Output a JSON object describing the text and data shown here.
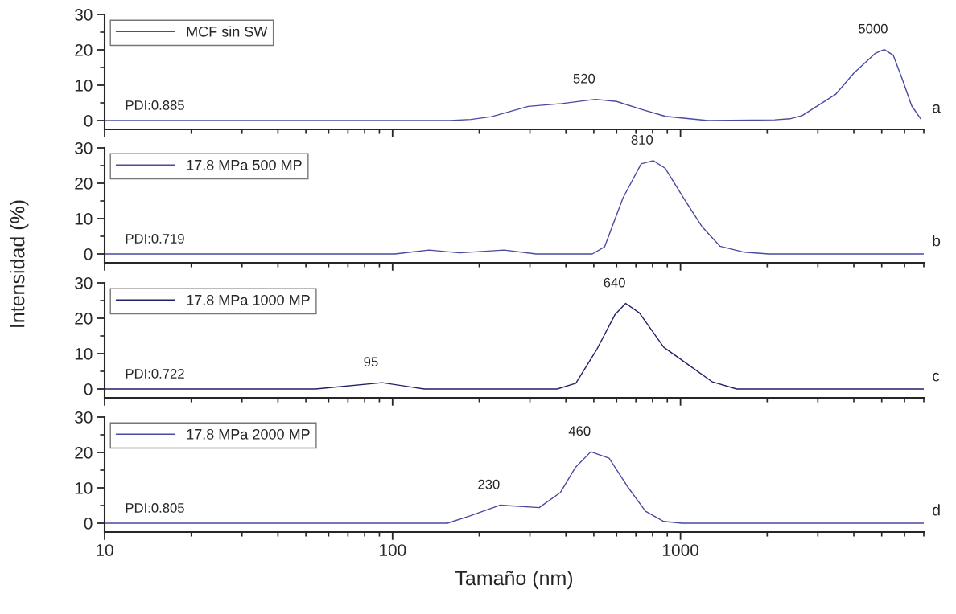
{
  "chart_data": [
    {
      "type": "line",
      "ylabel": "Intensidad (%)",
      "xlim": [
        10,
        7000
      ],
      "xticks": [
        10,
        100,
        1000
      ],
      "ylim": [
        -2.5,
        30
      ],
      "yticks": [
        0,
        10,
        20,
        30
      ],
      "log": "x",
      "tick_labels": "y",
      "legend": "top left",
      "grid": false,
      "series": [
        {
          "name": "MCF sin SW",
          "color": "#4a4aa0",
          "x": [
            10,
            158,
            187,
            221,
            296,
            387,
            506,
            600,
            729,
            886,
            1245,
            2125,
            2400,
            2643,
            3456,
            4000,
            4745,
            5100,
            5480,
            5900,
            6350,
            6830
          ],
          "values": [
            0,
            0,
            0.3,
            1.1,
            4.0,
            4.8,
            6.0,
            5.4,
            3.2,
            1.2,
            0,
            0.2,
            0.5,
            1.4,
            7.4,
            13.4,
            19.0,
            20.1,
            18.5,
            11.6,
            4.2,
            0.5
          ]
        }
      ],
      "annotations": [
        "PDI:0.885",
        "a",
        {
          "text": "520",
          "x": 506,
          "y": 6.0
        },
        {
          "text": "5000",
          "x": 5100,
          "y": 20.1
        }
      ]
    },
    {
      "type": "line",
      "xlim": [
        10,
        7000
      ],
      "xticks": [
        10,
        100,
        1000
      ],
      "ylim": [
        -2.5,
        30
      ],
      "yticks": [
        0,
        10,
        20,
        30
      ],
      "log": "x",
      "tick_labels": "y",
      "legend": "top left",
      "grid": false,
      "series": [
        {
          "name": "17.8 MPa 500 MP",
          "color": "#4a4aa0",
          "x": [
            10,
            102,
            134,
            171,
            244,
            315,
            494,
            545,
            631,
            730,
            804,
            886,
            1025,
            1186,
            1371,
            1666,
            2024,
            7000
          ],
          "values": [
            0,
            0,
            1.1,
            0.3,
            1.1,
            0,
            0,
            2.0,
            15.8,
            25.5,
            26.4,
            24.2,
            15.8,
            7.8,
            2.2,
            0.5,
            0,
            0
          ]
        }
      ],
      "annotations": [
        "PDI:0.719",
        "b",
        {
          "text": "810",
          "x": 804,
          "y": 26.4
        }
      ]
    },
    {
      "type": "line",
      "xlim": [
        10,
        7000
      ],
      "xticks": [
        10,
        100,
        1000
      ],
      "ylim": [
        -2.5,
        30
      ],
      "yticks": [
        0,
        10,
        20,
        30
      ],
      "log": "x",
      "tick_labels": "y",
      "legend": "top left",
      "grid": false,
      "series": [
        {
          "name": "17.8 MPa 1000 MP",
          "color": "#202065",
          "x": [
            10,
            54,
            92,
            129,
            373,
            433,
            513,
            593,
            645,
            720,
            875,
            1063,
            1291,
            1567,
            7000
          ],
          "values": [
            0,
            0,
            1.8,
            0,
            0,
            1.6,
            11.3,
            21.1,
            24.2,
            21.5,
            11.8,
            6.9,
            2.0,
            0,
            0
          ]
        }
      ],
      "annotations": [
        "PDI:0.722",
        "c",
        {
          "text": "95",
          "x": 92,
          "y": 1.8
        },
        {
          "text": "640",
          "x": 645,
          "y": 24.2
        }
      ]
    },
    {
      "type": "line",
      "xlabel": "Tamaño (nm)",
      "xlim": [
        10,
        7000
      ],
      "xticks": [
        10,
        100,
        1000
      ],
      "ylim": [
        -2.5,
        30
      ],
      "yticks": [
        0,
        10,
        20,
        30
      ],
      "log": "x",
      "legend": "top left",
      "grid": false,
      "series": [
        {
          "name": "17.8 MPa 2000 MP",
          "color": "#4a4aa0",
          "x": [
            10,
            155,
            185,
            236,
            323,
            383,
            432,
            488,
            565,
            654,
            756,
            875,
            1012,
            7000
          ],
          "values": [
            0,
            0,
            2.0,
            5.1,
            4.4,
            8.7,
            15.8,
            20.2,
            18.4,
            10.4,
            3.4,
            0.5,
            0,
            0
          ]
        }
      ],
      "annotations": [
        "PDI:0.805",
        "d",
        {
          "text": "460",
          "x": 488,
          "y": 20.2
        },
        {
          "text": "230",
          "x": 236,
          "y": 5.1
        }
      ]
    }
  ]
}
